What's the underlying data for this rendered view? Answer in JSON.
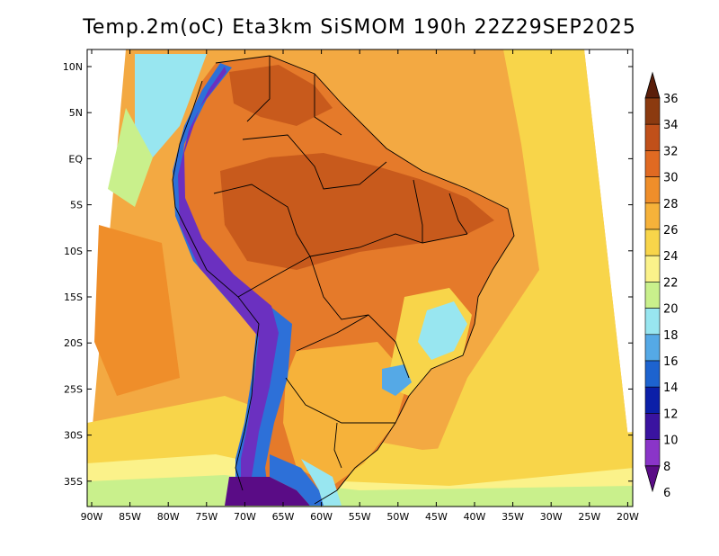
{
  "title": "Temp.2m(oC) Eta3km SiSMOM 190h 22Z29SEP2025",
  "lat_labels": [
    "10N",
    "5N",
    "EQ",
    "5S",
    "10S",
    "15S",
    "20S",
    "25S",
    "30S",
    "35S"
  ],
  "lon_labels": [
    "90W",
    "85W",
    "80W",
    "75W",
    "70W",
    "65W",
    "60W",
    "55W",
    "50W",
    "45W",
    "40W",
    "35W",
    "30W",
    "25W",
    "20W"
  ],
  "colorbar": {
    "labels": [
      "36",
      "34",
      "32",
      "30",
      "28",
      "26",
      "24",
      "22",
      "20",
      "18",
      "16",
      "14",
      "12",
      "10",
      "8",
      "6"
    ],
    "colors": [
      "#5a1e0a",
      "#8b3a10",
      "#c0501a",
      "#e06a22",
      "#ef8e2a",
      "#f6b23a",
      "#f8d54a",
      "#fbf28a",
      "#c9f08c",
      "#98e6f0",
      "#55a9e6",
      "#1d63cf",
      "#0b1fa8",
      "#3a13a0",
      "#8a35c8",
      "#5a0c86"
    ]
  },
  "colors": {
    "ocean": "#f3a942",
    "ocean_south": "#f7d250",
    "land": "#e57a2a",
    "land_hot": "#c85a1c",
    "andes_cold": "#6b30c0",
    "andes_cool": "#2d70d8",
    "coast_cool": "#a9e8f0"
  }
}
